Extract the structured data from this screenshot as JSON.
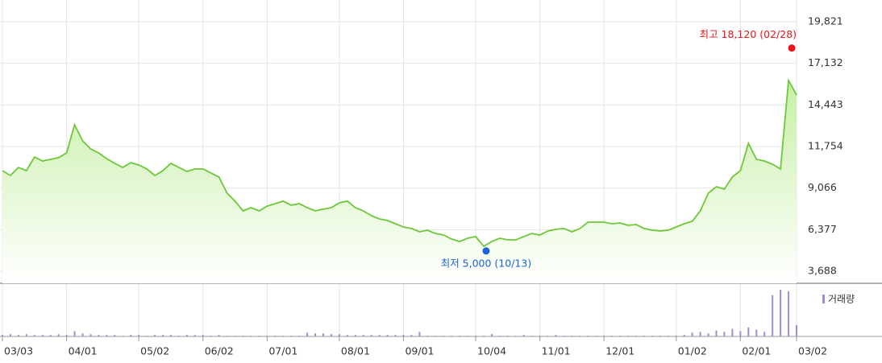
{
  "chart_data": {
    "type": "area",
    "categories": [
      "03/03",
      null,
      null,
      null,
      null,
      null,
      null,
      null,
      "04/01",
      null,
      null,
      null,
      null,
      null,
      null,
      null,
      null,
      "05/02",
      null,
      null,
      null,
      null,
      null,
      null,
      null,
      "06/02",
      null,
      null,
      null,
      null,
      null,
      null,
      null,
      "07/01",
      null,
      null,
      null,
      null,
      null,
      null,
      null,
      null,
      "08/01",
      null,
      null,
      null,
      null,
      null,
      null,
      null,
      "09/01",
      null,
      null,
      null,
      null,
      null,
      null,
      null,
      null,
      "10/04",
      null,
      null,
      null,
      null,
      null,
      null,
      null,
      "11/01",
      null,
      null,
      null,
      null,
      null,
      null,
      null,
      "12/01",
      null,
      null,
      null,
      null,
      null,
      null,
      null,
      null,
      "01/02",
      null,
      null,
      null,
      null,
      null,
      null,
      null,
      "02/01",
      null,
      null,
      null,
      null,
      null,
      null,
      "03/02"
    ],
    "series": [
      {
        "color": "#6cc83a",
        "values": [
          10190,
          9880,
          10400,
          10190,
          11080,
          10820,
          10920,
          11030,
          11340,
          13160,
          12120,
          11600,
          11340,
          10970,
          10660,
          10400,
          10710,
          10560,
          10300,
          9880,
          10190,
          10660,
          10400,
          10140,
          10300,
          10300,
          10040,
          9780,
          8740,
          8220,
          7590,
          7800,
          7590,
          7900,
          8060,
          8220,
          7960,
          8060,
          7800,
          7590,
          7700,
          7800,
          8110,
          8220,
          7800,
          7590,
          7280,
          7070,
          6970,
          6760,
          6550,
          6450,
          6240,
          6340,
          6130,
          6030,
          5770,
          5610,
          5820,
          5930,
          5300,
          5610,
          5820,
          5720,
          5720,
          5930,
          6130,
          6030,
          6290,
          6400,
          6450,
          6240,
          6450,
          6860,
          6860,
          6860,
          6760,
          6810,
          6660,
          6710,
          6450,
          6340,
          6290,
          6340,
          6550,
          6760,
          6920,
          7590,
          8740,
          9150,
          9000,
          9780,
          10190,
          11960,
          10920,
          10820,
          10610,
          10300,
          16020,
          15090
        ]
      }
    ],
    "volume": {
      "name": "거래량",
      "color": "#9a8fd6",
      "values": [
        2,
        3,
        2,
        3,
        2,
        2,
        2,
        3,
        2,
        7,
        4,
        3,
        2,
        2,
        2,
        1,
        2,
        2,
        1,
        2,
        2,
        2,
        1,
        2,
        2,
        2,
        1,
        2,
        1,
        1,
        1,
        1,
        1,
        1,
        1,
        1,
        1,
        1,
        5,
        4,
        4,
        3,
        3,
        2,
        2,
        2,
        2,
        2,
        2,
        2,
        2,
        2,
        6,
        1,
        1,
        1,
        1,
        1,
        1,
        1,
        1,
        3,
        1,
        1,
        1,
        2,
        1,
        1,
        1,
        2,
        1,
        1,
        1,
        1,
        1,
        1,
        1,
        1,
        1,
        1,
        1,
        1,
        1,
        1,
        1,
        2,
        5,
        6,
        4,
        8,
        6,
        10,
        7,
        12,
        9,
        6,
        55,
        62,
        60,
        15
      ]
    },
    "high": {
      "label": "최고 18,120 (02/28)",
      "value": 18120,
      "color": "#e8141a"
    },
    "low": {
      "label": "최저 5,000 (10/13)",
      "value": 5000,
      "color": "#1a62d6"
    },
    "ylim": [
      3688,
      19821
    ],
    "yticks": [
      {
        "value": 3688,
        "label": "3,688"
      },
      {
        "value": 6377,
        "label": "6,377"
      },
      {
        "value": 9066,
        "label": "9,066"
      },
      {
        "value": 11754,
        "label": "11,754"
      },
      {
        "value": 14443,
        "label": "14,443"
      },
      {
        "value": 17132,
        "label": "17,132"
      },
      {
        "value": 19821,
        "label": "19,821"
      }
    ],
    "grid": true
  }
}
